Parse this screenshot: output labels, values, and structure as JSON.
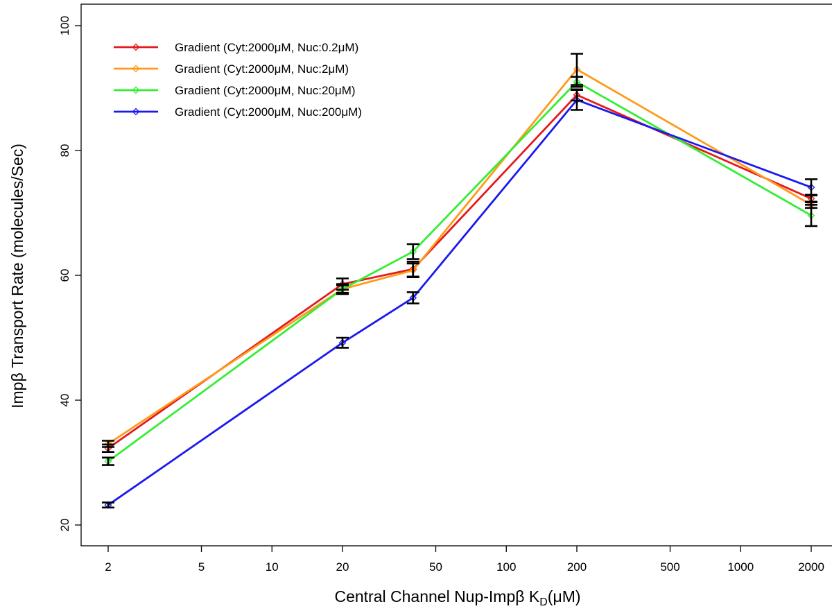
{
  "chart_data": {
    "type": "line",
    "title": "",
    "xlabel": "Central Channel Nup-Impβ  K",
    "xlabel_sub": "D",
    "xlabel_unit": "(μM)",
    "ylabel": "Impβ Transport Rate (molecules/Sec)",
    "x_scale": "log",
    "x": [
      2,
      20,
      40,
      200,
      2000
    ],
    "xticks": [
      2,
      5,
      10,
      20,
      50,
      100,
      200,
      500,
      1000,
      2000
    ],
    "xtick_labels": [
      "2",
      "5",
      "10",
      "20",
      "50",
      "100",
      "200",
      "500",
      "1000",
      "2000"
    ],
    "xlim": [
      1.5,
      2700
    ],
    "yticks": [
      20,
      40,
      60,
      80,
      100
    ],
    "ytick_labels": [
      "20",
      "40",
      "60",
      "80",
      "100"
    ],
    "ylim": [
      20,
      102
    ],
    "grid": false,
    "legend_position": "top-left",
    "marker": "diamond",
    "series": [
      {
        "name": "Gradient (Cyt:2000μM, Nuc:0.2μM)",
        "color": "#e41a1c",
        "values": [
          32.3,
          58.6,
          61.0,
          88.9,
          72.3
        ],
        "errors": [
          0.6,
          0.9,
          1.2,
          0.9,
          0.6
        ]
      },
      {
        "name": "Gradient (Cyt:2000μM, Nuc:2μM)",
        "color": "#ff9a1a",
        "values": [
          33.0,
          57.8,
          60.8,
          93.0,
          71.3
        ],
        "errors": [
          0.5,
          0.8,
          1.1,
          2.5,
          0.5
        ]
      },
      {
        "name": "Gradient (Cyt:2000μM, Nuc:20μM)",
        "color": "#33ee33",
        "values": [
          30.2,
          57.8,
          63.8,
          91.0,
          69.6
        ],
        "errors": [
          0.6,
          0.6,
          1.2,
          0.8,
          1.7
        ]
      },
      {
        "name": "Gradient (Cyt:2000μM, Nuc:200μM)",
        "color": "#1a1aee",
        "values": [
          23.2,
          49.2,
          56.4,
          88.1,
          74.1
        ],
        "errors": [
          0.4,
          0.8,
          0.9,
          1.6,
          1.3
        ]
      }
    ]
  }
}
